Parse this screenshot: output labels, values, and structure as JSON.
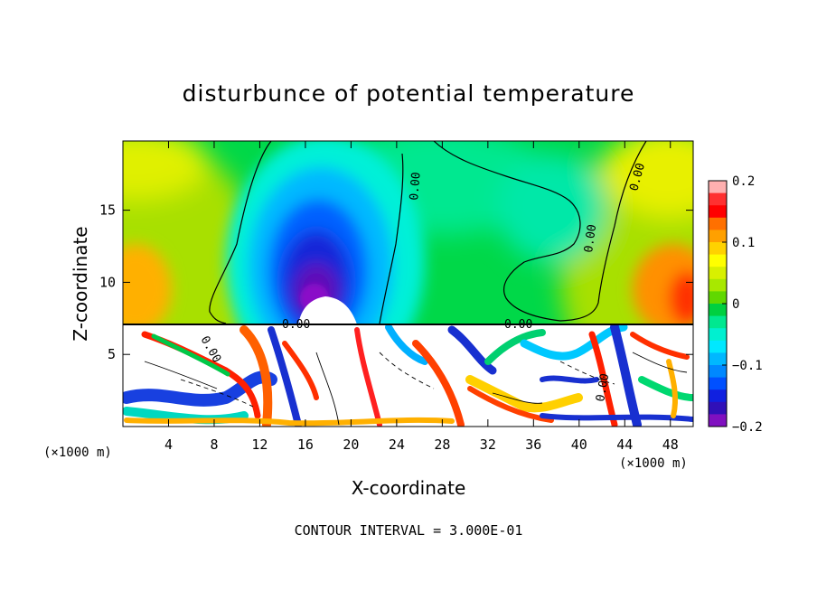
{
  "chart_data": {
    "type": "heatmap",
    "title": "disturbunce of potential temperature",
    "xlabel": "X-coordinate",
    "ylabel": "Z-coordinate",
    "x_unit_left": "(×1000 m)",
    "x_unit_right": "(×1000 m)",
    "xlim": [
      0,
      50
    ],
    "ylim": [
      0,
      19.8
    ],
    "x_ticks": [
      4,
      8,
      12,
      16,
      20,
      24,
      28,
      32,
      36,
      40,
      44,
      48
    ],
    "x_tick_labels": [
      "4",
      "8",
      "12",
      "16",
      "20",
      "24",
      "28",
      "32",
      "36",
      "40",
      "44",
      "48"
    ],
    "y_ticks": [
      5,
      10,
      15
    ],
    "y_tick_labels": [
      "5",
      "10",
      "15"
    ],
    "colorbar": {
      "range": [
        -0.2,
        0.2
      ],
      "ticks": [
        0.2,
        0.1,
        0,
        -0.1,
        -0.2
      ],
      "tick_labels": [
        "0.2",
        "0.1",
        "0",
        "−0.1",
        "−0.2"
      ],
      "colors": [
        "#ffb0b0",
        "#ff3030",
        "#ff0000",
        "#ff7000",
        "#ffa000",
        "#ffd200",
        "#ffff00",
        "#d8f000",
        "#a8e800",
        "#60d800",
        "#00d040",
        "#00e890",
        "#00f0d0",
        "#00e8ff",
        "#00b8ff",
        "#0088ff",
        "#0050ff",
        "#1020e0",
        "#3010b8",
        "#8010c0"
      ]
    },
    "contour_labels": [
      "0.00",
      "0.00",
      "0.00",
      "0.00",
      "0.00",
      "0.00",
      "0.00"
    ],
    "footer": "CONTOUR INTERVAL = 3.000E-01",
    "features": [
      {
        "kind": "cold-core",
        "x": 17.5,
        "z": 11,
        "value": -0.2
      },
      {
        "kind": "warm-edge",
        "x": 1,
        "z": 11,
        "value": 0.12
      },
      {
        "kind": "warm-edge",
        "x": 48.5,
        "z": 10.5,
        "value": 0.14
      }
    ],
    "interface_z": 7.2
  }
}
